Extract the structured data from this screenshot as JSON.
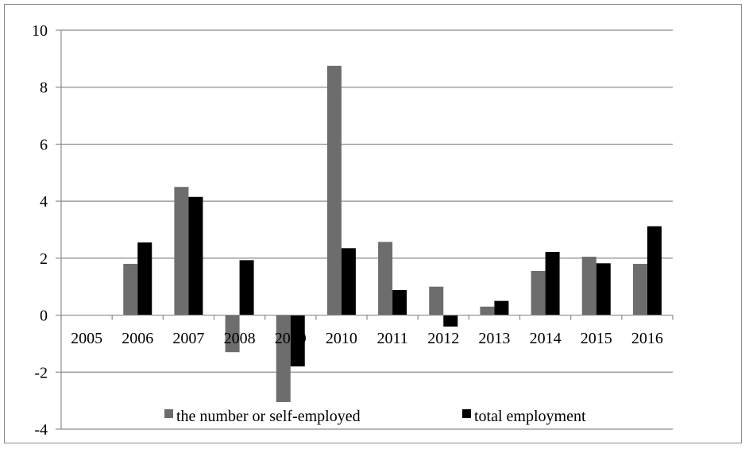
{
  "chart_data": {
    "type": "bar",
    "categories": [
      "2005",
      "2006",
      "2007",
      "2008",
      "2009",
      "2010",
      "2011",
      "2012",
      "2013",
      "2014",
      "2015",
      "2016"
    ],
    "series": [
      {
        "name": "the number or self-employed",
        "color": "#6d6d6d",
        "values": [
          0,
          1.8,
          4.5,
          -1.3,
          -3.05,
          8.75,
          2.57,
          1.0,
          0.3,
          1.55,
          2.05,
          1.8
        ]
      },
      {
        "name": "total employment",
        "color": "#000000",
        "values": [
          0,
          2.55,
          4.15,
          1.93,
          -1.8,
          2.35,
          0.88,
          -0.4,
          0.5,
          2.22,
          1.82,
          3.12
        ]
      }
    ],
    "title": "",
    "xlabel": "",
    "ylabel": "",
    "ylim": [
      -4,
      10
    ],
    "yticks": [
      "-4",
      "-2",
      "0",
      "2",
      "4",
      "6",
      "8",
      "10"
    ],
    "grid": true,
    "legend": "bottom"
  }
}
